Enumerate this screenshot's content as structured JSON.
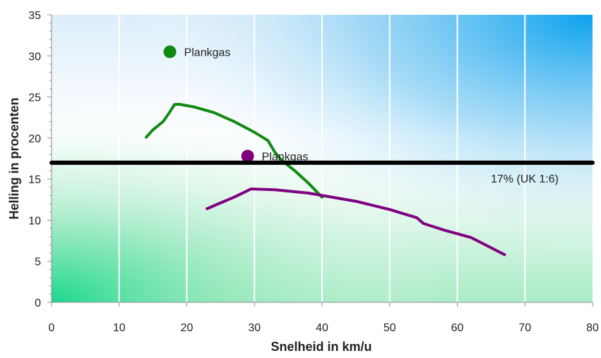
{
  "chart_data": {
    "type": "line",
    "xlabel": "Snelheid in km/u",
    "ylabel": "Helling in procenten",
    "xlim": [
      0,
      80
    ],
    "ylim": [
      0,
      35
    ],
    "x_ticks": [
      "0",
      "10",
      "20",
      "30",
      "40",
      "50",
      "60",
      "70",
      "80"
    ],
    "y_ticks": [
      "0",
      "5",
      "10",
      "15",
      "20",
      "25",
      "30",
      "35"
    ],
    "grid": "vertical",
    "colors": {
      "green": "#128a12",
      "purple": "#800080",
      "reference": "#000000"
    },
    "series": [
      {
        "name": "Plankgas",
        "color": "#128a12",
        "marker": [
          17.5,
          30.5
        ],
        "points": [
          [
            14,
            20.1
          ],
          [
            15,
            21
          ],
          [
            16.5,
            22
          ],
          [
            17.5,
            23.2
          ],
          [
            18.2,
            24.1
          ],
          [
            19,
            24.1
          ],
          [
            21,
            23.8
          ],
          [
            24,
            23.1
          ],
          [
            27,
            22
          ],
          [
            30,
            20.7
          ],
          [
            32,
            19.7
          ],
          [
            33,
            18.3
          ],
          [
            34,
            17.3
          ],
          [
            36,
            16
          ],
          [
            38,
            14.5
          ],
          [
            40,
            12.8
          ]
        ]
      },
      {
        "name": "Plankgas",
        "color": "#800080",
        "marker": [
          29,
          17.8
        ],
        "points": [
          [
            23,
            11.4
          ],
          [
            25,
            12.1
          ],
          [
            27,
            12.8
          ],
          [
            28.5,
            13.4
          ],
          [
            29.5,
            13.8
          ],
          [
            33,
            13.7
          ],
          [
            38,
            13.3
          ],
          [
            45,
            12.3
          ],
          [
            50,
            11.3
          ],
          [
            54,
            10.3
          ],
          [
            55,
            9.6
          ],
          [
            58,
            8.8
          ],
          [
            62,
            7.9
          ],
          [
            67,
            5.8
          ]
        ]
      }
    ],
    "reference_line": {
      "y": 17,
      "label": "17% (UK 1:6)"
    }
  }
}
